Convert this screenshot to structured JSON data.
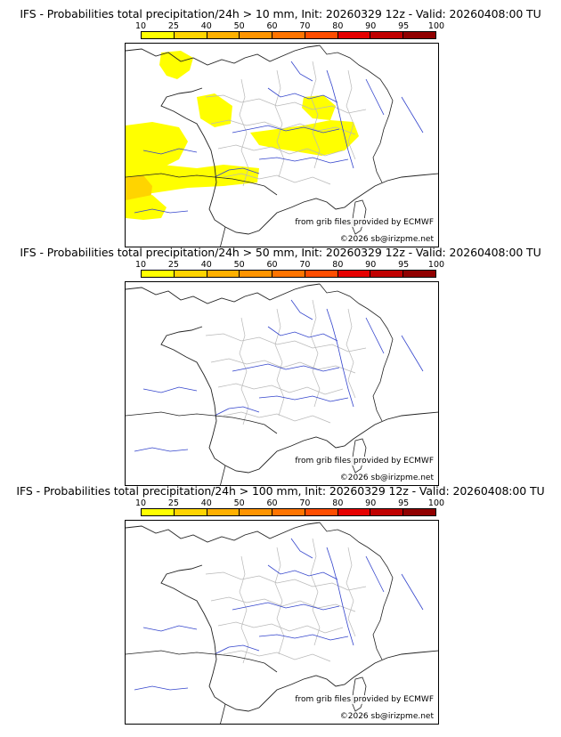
{
  "colorbar": {
    "labels": [
      "10",
      "25",
      "40",
      "50",
      "60",
      "70",
      "80",
      "90",
      "95",
      "100"
    ],
    "colors": [
      "#ffff00",
      "#ffd400",
      "#ffb000",
      "#ff9400",
      "#ff7400",
      "#ff4d00",
      "#e60000",
      "#c00000",
      "#900000",
      "#5a0000"
    ]
  },
  "panels": [
    {
      "title": "IFS - Probabilities total precipitation/24h > 10 mm, Init: 20260329 12z - Valid: 20260408:00 TU",
      "credit": "from grib files provided by ECMWF",
      "copyright": "©2026 sb@irizpme.net",
      "has_precip": true
    },
    {
      "title": "IFS - Probabilities total precipitation/24h > 50 mm, Init: 20260329 12z - Valid: 20260408:00 TU",
      "credit": "from grib files provided by ECMWF",
      "copyright": "©2026 sb@irizpme.net",
      "has_precip": false
    },
    {
      "title": "IFS - Probabilities total precipitation/24h > 100 mm, Init: 20260329 12z - Valid: 20260408:00 TU",
      "credit": "from grib files provided by ECMWF",
      "copyright": "©2026 sb@irizpme.net",
      "has_precip": false
    }
  ]
}
